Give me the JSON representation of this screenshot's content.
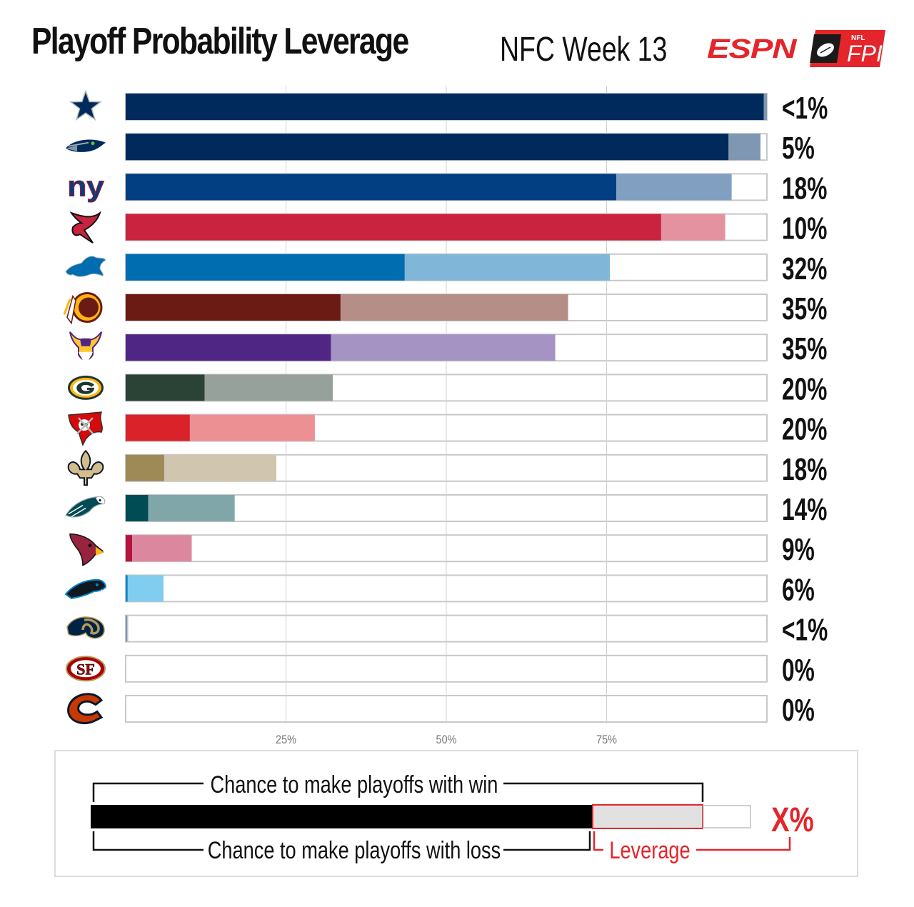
{
  "header": {
    "title": "Playoff Probability Leverage",
    "subtitle": "NFC Week 13",
    "espn_logo_text": "ESPN",
    "fpi_logo_small": "NFL",
    "fpi_logo_text": "FPI"
  },
  "chart_data": {
    "type": "bar",
    "title": "Playoff Probability Leverage",
    "subtitle": "NFC Week 13",
    "xlim": [
      0,
      100
    ],
    "x_ticks": [
      "25%",
      "50%",
      "75%"
    ],
    "x_tick_values": [
      25,
      50,
      75
    ],
    "grid": true,
    "series": [
      {
        "name": "Chance to make playoffs with loss"
      },
      {
        "name": "Chance to make playoffs with win"
      }
    ],
    "teams": [
      {
        "team": "Cowboys",
        "icon": "cowboys-star-icon",
        "loss": 99.5,
        "win": 100,
        "leverage_label": "<1%",
        "dark": "#002a5c",
        "light": "#7f97b1"
      },
      {
        "team": "Seahawks",
        "icon": "seahawks-icon",
        "loss": 94,
        "win": 99,
        "leverage_label": "5%",
        "dark": "#002a5c",
        "light": "#7f97b1"
      },
      {
        "team": "Giants",
        "icon": "giants-ny-icon",
        "loss": 76.5,
        "win": 94.5,
        "leverage_label": "18%",
        "dark": "#013f82",
        "light": "#809fc1"
      },
      {
        "team": "Falcons",
        "icon": "falcons-icon",
        "loss": 83.5,
        "win": 93.5,
        "leverage_label": "10%",
        "dark": "#c8233f",
        "light": "#e491a0"
      },
      {
        "team": "Lions",
        "icon": "lions-icon",
        "loss": 43.5,
        "win": 75.5,
        "leverage_label": "32%",
        "dark": "#006db0",
        "light": "#80b6d8"
      },
      {
        "team": "Redskins",
        "icon": "redskins-icon",
        "loss": 33.5,
        "win": 69,
        "leverage_label": "35%",
        "dark": "#6c1a14",
        "light": "#b58e88"
      },
      {
        "team": "Vikings",
        "icon": "vikings-icon",
        "loss": 32,
        "win": 67,
        "leverage_label": "35%",
        "dark": "#4f2684",
        "light": "#a593c3"
      },
      {
        "team": "Packers",
        "icon": "packers-g-icon",
        "loss": 12.3,
        "win": 32.3,
        "leverage_label": "20%",
        "dark": "#2b4236",
        "light": "#95a19a"
      },
      {
        "team": "Buccaneers",
        "icon": "buccaneers-flag-icon",
        "loss": 10,
        "win": 29.5,
        "leverage_label": "20%",
        "dark": "#d9222a",
        "light": "#ec9094"
      },
      {
        "team": "Saints",
        "icon": "saints-fleur-icon",
        "loss": 6,
        "win": 23.5,
        "leverage_label": "18%",
        "dark": "#9e8a57",
        "light": "#d0c5ae"
      },
      {
        "team": "Eagles",
        "icon": "eagles-icon",
        "loss": 3.5,
        "win": 17,
        "leverage_label": "14%",
        "dark": "#004c54",
        "light": "#80a6aa"
      },
      {
        "team": "Cardinals",
        "icon": "cardinals-icon",
        "loss": 1,
        "win": 10.3,
        "leverage_label": "9%",
        "dark": "#b5123e",
        "light": "#db889e"
      },
      {
        "team": "Panthers",
        "icon": "panthers-icon",
        "loss": 0.3,
        "win": 5.9,
        "leverage_label": "6%",
        "dark": "#0085ca",
        "light": "#80cdef"
      },
      {
        "team": "Rams",
        "icon": "rams-horn-icon",
        "loss": 0.2,
        "win": 0.4,
        "leverage_label": "<1%",
        "dark": "#7f97b1",
        "light": "#b9c6d6"
      },
      {
        "team": "49ers",
        "icon": "niners-sf-icon",
        "loss": 0,
        "win": 0,
        "leverage_label": "0%",
        "dark": "#aa0000",
        "light": "#d48080"
      },
      {
        "team": "Bears",
        "icon": "bears-c-icon",
        "loss": 0,
        "win": 0,
        "leverage_label": "0%",
        "dark": "#0b162a",
        "light": "#c83803"
      }
    ]
  },
  "legend": {
    "win_label": "Chance to make playoffs with win",
    "loss_label": "Chance to make playoffs with loss",
    "leverage_label": "Leverage",
    "value_label": "X%",
    "accent_color": "#e4252b"
  }
}
